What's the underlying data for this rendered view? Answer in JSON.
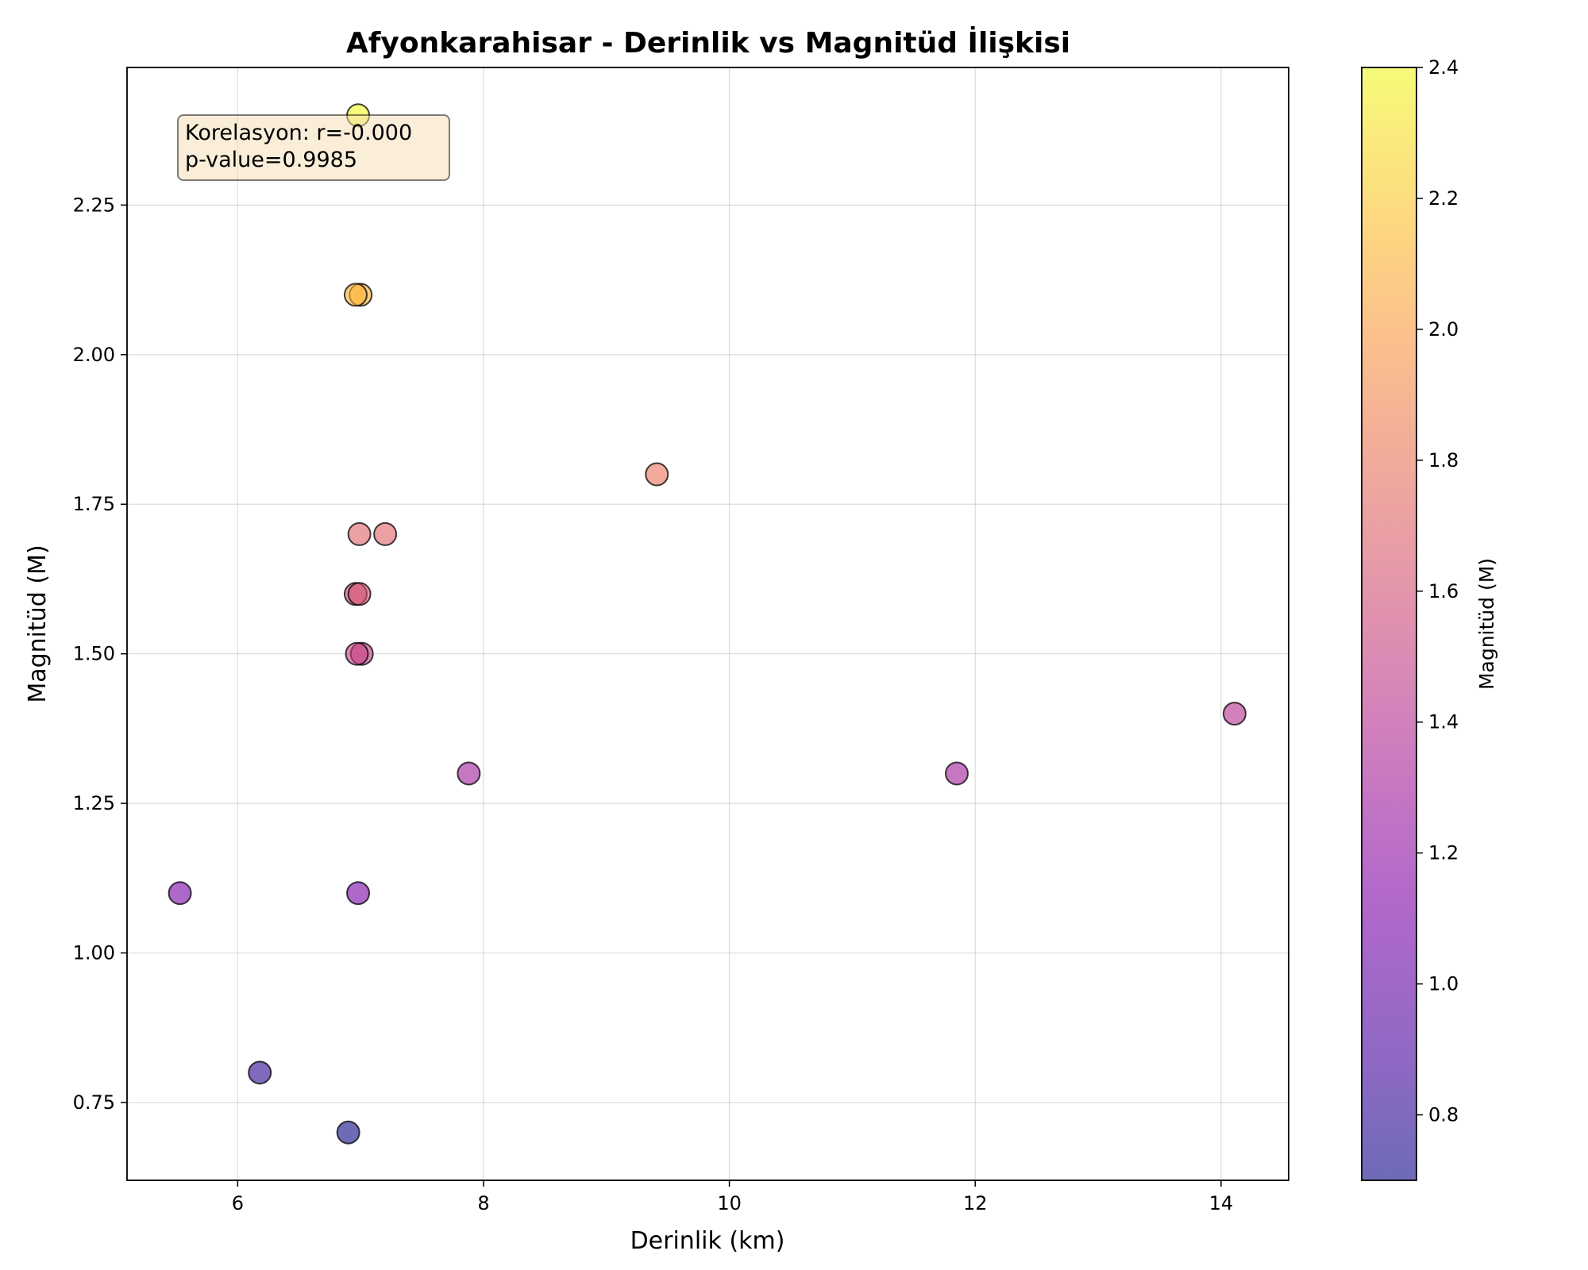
{
  "chart_data": {
    "type": "scatter",
    "title": "Afyonkarahisar - Derinlik vs Magnitüd İlişkisi",
    "xlabel": "Derinlik (km)",
    "ylabel": "Magnitüd (M)",
    "xlim": [
      5.1,
      14.55
    ],
    "ylim": [
      0.62,
      2.48
    ],
    "xticks": [
      6,
      8,
      10,
      12,
      14
    ],
    "xtick_labels": [
      "6",
      "8",
      "10",
      "12",
      "14"
    ],
    "yticks": [
      0.75,
      1.0,
      1.25,
      1.5,
      1.75,
      2.0,
      2.25
    ],
    "ytick_labels": [
      "0.75",
      "1.00",
      "1.25",
      "1.50",
      "1.75",
      "2.00",
      "2.25"
    ],
    "grid": true,
    "colormap": "plasma",
    "color_alpha": 0.6,
    "colorbar": {
      "label": "Magnitüd (M)",
      "range": [
        0.7,
        2.4
      ],
      "ticks": [
        0.8,
        1.0,
        1.2,
        1.4,
        1.6,
        1.8,
        2.0,
        2.2,
        2.4
      ],
      "tick_labels": [
        "0.8",
        "1.0",
        "1.2",
        "1.4",
        "1.6",
        "1.8",
        "2.0",
        "2.2",
        "2.4"
      ]
    },
    "annotation": {
      "lines": [
        "Korelasyon: r=-0.000",
        "p-value=0.9985"
      ],
      "placement": "top-left",
      "box_color": "#f5deb3"
    },
    "points": [
      {
        "x": 6.98,
        "y": 2.4
      },
      {
        "x": 7.0,
        "y": 2.1
      },
      {
        "x": 6.96,
        "y": 2.1
      },
      {
        "x": 9.41,
        "y": 1.8
      },
      {
        "x": 6.99,
        "y": 1.7
      },
      {
        "x": 7.2,
        "y": 1.7
      },
      {
        "x": 6.96,
        "y": 1.6
      },
      {
        "x": 6.99,
        "y": 1.6
      },
      {
        "x": 7.01,
        "y": 1.5
      },
      {
        "x": 6.97,
        "y": 1.5
      },
      {
        "x": 14.11,
        "y": 1.4
      },
      {
        "x": 7.88,
        "y": 1.3
      },
      {
        "x": 11.85,
        "y": 1.3
      },
      {
        "x": 5.53,
        "y": 1.1
      },
      {
        "x": 6.98,
        "y": 1.1
      },
      {
        "x": 6.18,
        "y": 0.8
      },
      {
        "x": 6.9,
        "y": 0.7
      }
    ]
  }
}
